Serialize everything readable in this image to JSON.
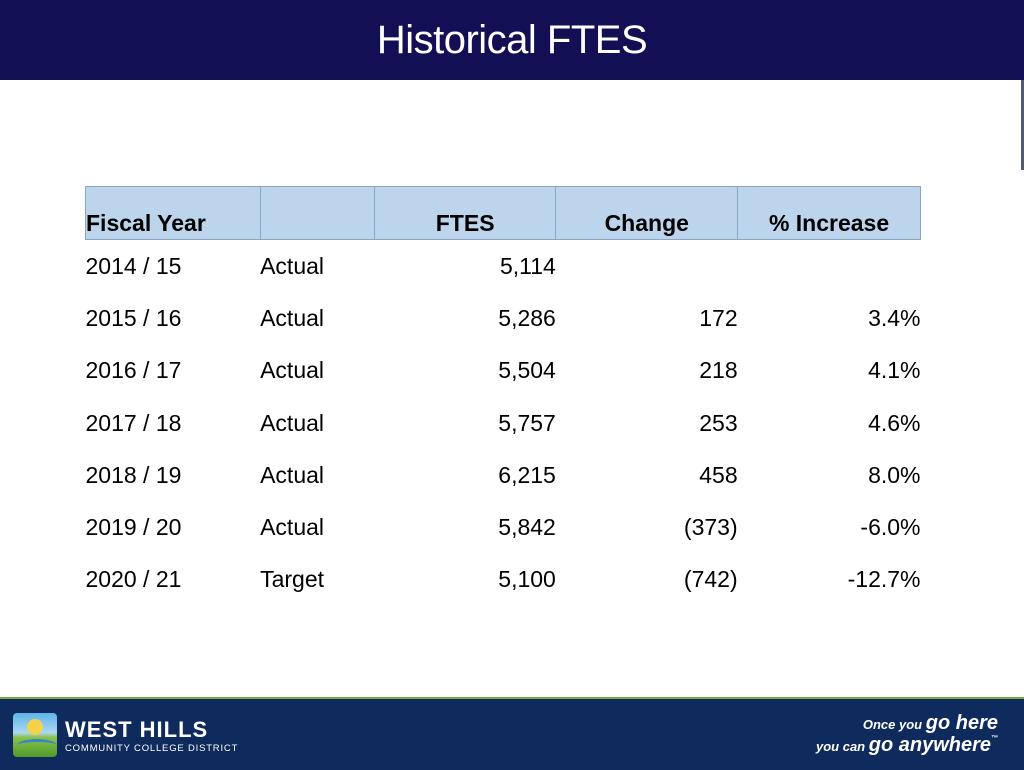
{
  "title": "Historical FTES",
  "table": {
    "headers": {
      "fiscal_year": "Fiscal Year",
      "type": "",
      "ftes": "FTES",
      "change": "Change",
      "pct": "% Increase"
    },
    "rows": [
      {
        "year": "2014 / 15",
        "type": "Actual",
        "ftes": "5,114",
        "change": "",
        "pct": ""
      },
      {
        "year": "2015 / 16",
        "type": "Actual",
        "ftes": "5,286",
        "change": "172",
        "pct": "3.4%"
      },
      {
        "year": "2016 / 17",
        "type": "Actual",
        "ftes": "5,504",
        "change": "218",
        "pct": "4.1%"
      },
      {
        "year": "2017 / 18",
        "type": "Actual",
        "ftes": "5,757",
        "change": "253",
        "pct": "4.6%"
      },
      {
        "year": "2018 / 19",
        "type": "Actual",
        "ftes": "6,215",
        "change": "458",
        "pct": "8.0%"
      },
      {
        "year": "2019 / 20",
        "type": "Actual",
        "ftes": "5,842",
        "change": "(373)",
        "pct": "-6.0%"
      },
      {
        "year": "2020 / 21",
        "type": "Target",
        "ftes": "5,100",
        "change": "(742)",
        "pct": "-12.7%"
      }
    ]
  },
  "footer": {
    "logo_name": "WEST HILLS",
    "logo_sub": "COMMUNITY COLLEGE DISTRICT",
    "tagline_pre1": "Once you",
    "tagline_big1": "go here",
    "tagline_pre2": "you can",
    "tagline_big2": "go anywhere",
    "trademark": "™"
  },
  "colors": {
    "title_bar": "#120f55",
    "header_fill": "#bcd5ec",
    "footer_bg": "#0f2a5c"
  }
}
